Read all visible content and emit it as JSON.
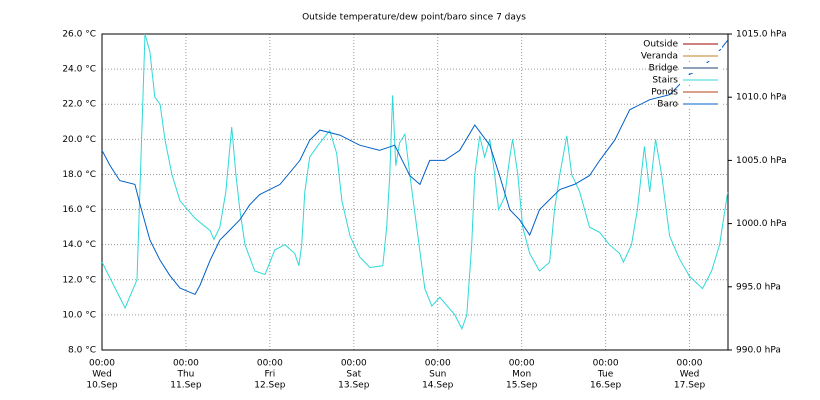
{
  "chart_data": {
    "type": "line",
    "title": "Outside temperature/dew point/baro since 7 days",
    "xlim": [
      0,
      179
    ],
    "xticks": [
      {
        "value": 0,
        "label": [
          "00:00",
          "Wed",
          "10.Sep"
        ]
      },
      {
        "value": 24,
        "label": [
          "00:00",
          "Thu",
          "11.Sep"
        ]
      },
      {
        "value": 48,
        "label": [
          "00:00",
          "Fri",
          "12.Sep"
        ]
      },
      {
        "value": 72,
        "label": [
          "00:00",
          "Sat",
          "13.Sep"
        ]
      },
      {
        "value": 96,
        "label": [
          "00:00",
          "Sun",
          "14.Sep"
        ]
      },
      {
        "value": 120,
        "label": [
          "00:00",
          "Mon",
          "15.Sep"
        ]
      },
      {
        "value": 144,
        "label": [
          "00:00",
          "Tue",
          "16.Sep"
        ]
      },
      {
        "value": 168,
        "label": [
          "00:00",
          "Wed",
          "17.Sep"
        ]
      }
    ],
    "ylim": [
      8,
      26
    ],
    "yticks": [
      {
        "value": 8,
        "label": "8.0 °C"
      },
      {
        "value": 10,
        "label": "10.0 °C"
      },
      {
        "value": 12,
        "label": "12.0 °C"
      },
      {
        "value": 14,
        "label": "14.0 °C"
      },
      {
        "value": 16,
        "label": "16.0 °C"
      },
      {
        "value": 18,
        "label": "18.0 °C"
      },
      {
        "value": 20,
        "label": "20.0 °C"
      },
      {
        "value": 22,
        "label": "22.0 °C"
      },
      {
        "value": 24,
        "label": "24.0 °C"
      },
      {
        "value": 26,
        "label": "26.0 °C"
      }
    ],
    "y2lim": [
      990,
      1015
    ],
    "y2ticks": [
      {
        "value": 990,
        "label": "990.0 hPa"
      },
      {
        "value": 995,
        "label": "995.0 hPa"
      },
      {
        "value": 1000,
        "label": "1000.0 hPa"
      },
      {
        "value": 1005,
        "label": "1005.0 hPa"
      },
      {
        "value": 1010,
        "label": "1010.0 hPa"
      },
      {
        "value": 1015,
        "label": "1015.0 hPa"
      }
    ],
    "grid": true,
    "legend": "top-right",
    "series": [
      {
        "name": "Outside",
        "color": "#a00000",
        "x": [],
        "values": []
      },
      {
        "name": "Veranda",
        "color": "#c08020",
        "x": [],
        "values": []
      },
      {
        "name": "Bridge",
        "color": "#204070",
        "x": [],
        "values": []
      },
      {
        "name": "Stairs",
        "color": "#30d8d8",
        "x": [
          0,
          6.6,
          10,
          12.3,
          13.7,
          15.1,
          16.6,
          18,
          20,
          22.3,
          26.6,
          30.9,
          32,
          33.7,
          35.4,
          37.1,
          38.3,
          39.4,
          40.9,
          43.7,
          46.6,
          49.4,
          52.3,
          55.1,
          56.3,
          57.1,
          58,
          59.4,
          62.3,
          65.1,
          67.1,
          68.6,
          70.9,
          73.7,
          76.6,
          80.3,
          81.4,
          82.3,
          83.1,
          84,
          85.1,
          86.6,
          88,
          90,
          92.3,
          94.3,
          96.6,
          100.9,
          102.9,
          104.3,
          105.7,
          106.6,
          108,
          109.4,
          110.9,
          112.3,
          113.4,
          115.1,
          116.6,
          117.4,
          118.9,
          120.3,
          122.3,
          125.1,
          128,
          129.4,
          130.9,
          132.9,
          134.3,
          136.6,
          139.4,
          142.3,
          145.1,
          148,
          149.1,
          151.4,
          153.1,
          155.1,
          156.6,
          158.3,
          160,
          162.3,
          165.1,
          168,
          171.7,
          174.3,
          176.6,
          178.9
        ],
        "values": [
          13.0,
          10.4,
          12.0,
          26.0,
          25.0,
          22.4,
          22.0,
          20.0,
          18.0,
          16.5,
          15.5,
          14.8,
          14.3,
          15.0,
          17.0,
          20.7,
          18.0,
          16.0,
          14.0,
          12.5,
          12.3,
          13.7,
          14.0,
          13.5,
          12.8,
          14.0,
          17.0,
          19.0,
          19.8,
          20.5,
          19.2,
          16.5,
          14.5,
          13.3,
          12.7,
          12.8,
          15.0,
          18.0,
          22.5,
          18.5,
          19.8,
          20.3,
          18.0,
          15.0,
          11.5,
          10.5,
          11.0,
          10.0,
          9.2,
          10.0,
          14.0,
          18.0,
          20.2,
          19.0,
          20.0,
          18.0,
          16.0,
          16.7,
          19.0,
          20.0,
          18.0,
          15.0,
          13.5,
          12.5,
          13.0,
          16.0,
          18.0,
          20.2,
          18.0,
          17.0,
          15.0,
          14.7,
          14.0,
          13.5,
          13.0,
          14.0,
          16.0,
          19.6,
          17.0,
          20.0,
          18.0,
          14.5,
          13.2,
          12.2,
          11.5,
          12.5,
          14.0,
          17.0
        ]
      },
      {
        "name": "Ponds",
        "color": "#b04010",
        "x": [],
        "values": []
      },
      {
        "name": "Baro",
        "color": "#0060c8",
        "axis": "y2",
        "x": [
          0,
          2.3,
          5.1,
          9.4,
          10.9,
          13.7,
          16.6,
          19.4,
          22.3,
          26.6,
          28,
          30.9,
          33.7,
          36.6,
          39.4,
          42.3,
          45.1,
          50.9,
          56.6,
          59.4,
          62.3,
          68,
          73.7,
          79.4,
          83.7,
          88,
          90.9,
          93.7,
          98,
          102.3,
          106.6,
          110.9,
          113.7,
          116.6,
          119.4,
          122.3,
          125.1,
          128,
          130.9,
          135.1,
          139.4,
          142.3,
          146.6,
          150.9,
          156.6,
          162.3,
          168,
          170.9,
          173.7,
          176.6,
          178.9
        ],
        "values": [
          1005.8,
          1004.6,
          1003.4,
          1003.1,
          1001.5,
          998.7,
          997.1,
          995.9,
          994.9,
          994.4,
          995.1,
          997.1,
          998.7,
          999.5,
          1000.3,
          1001.5,
          1002.3,
          1003.1,
          1005.0,
          1006.6,
          1007.4,
          1007.0,
          1006.2,
          1005.8,
          1006.2,
          1003.8,
          1003.1,
          1005.0,
          1005.0,
          1005.8,
          1007.8,
          1006.2,
          1003.8,
          1001.1,
          1000.3,
          999.1,
          1001.1,
          1001.9,
          1002.7,
          1003.1,
          1003.8,
          1005.0,
          1006.6,
          1009.0,
          1009.8,
          1010.2,
          1011.8,
          1012.2,
          1012.9,
          1013.7,
          1014.5
        ]
      }
    ]
  }
}
